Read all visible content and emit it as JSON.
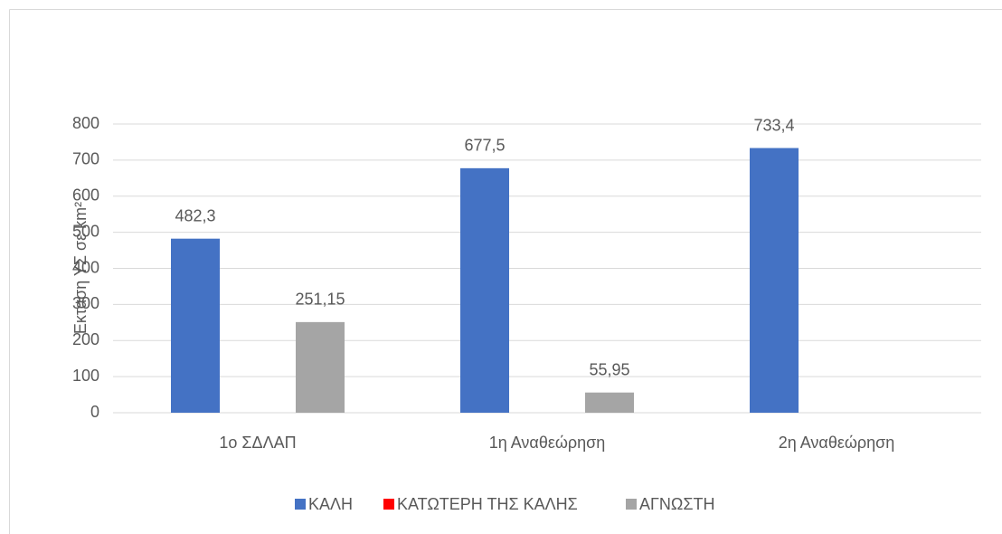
{
  "chart_data": {
    "type": "bar",
    "ylabel": "Εκταση ΥΣ σε km²",
    "categories": [
      "1ο ΣΔΛΑΠ",
      "1η Αναθεώρηση",
      "2η Αναθεώρηση"
    ],
    "series": [
      {
        "name": "ΚΑΛΗ",
        "color": "#4472c4",
        "values": [
          482.3,
          677.5,
          733.4
        ],
        "value_labels": [
          "482,3",
          "677,5",
          "733,4"
        ]
      },
      {
        "name": "ΚΑΤΩΤΕΡΗ ΤΗΣ ΚΑΛΗΣ",
        "color": "#ff0000",
        "values": [
          null,
          null,
          null
        ]
      },
      {
        "name": "ΑΓΝΩΣΤΗ",
        "color": "#a5a5a5",
        "values": [
          251.15,
          55.95,
          null
        ],
        "value_labels": [
          "251,15",
          "55,95",
          null
        ]
      }
    ],
    "ylim": [
      0,
      800
    ],
    "yticks": [
      0,
      100,
      200,
      300,
      400,
      500,
      600,
      700,
      800
    ],
    "grid": true,
    "legend": "bottom"
  }
}
